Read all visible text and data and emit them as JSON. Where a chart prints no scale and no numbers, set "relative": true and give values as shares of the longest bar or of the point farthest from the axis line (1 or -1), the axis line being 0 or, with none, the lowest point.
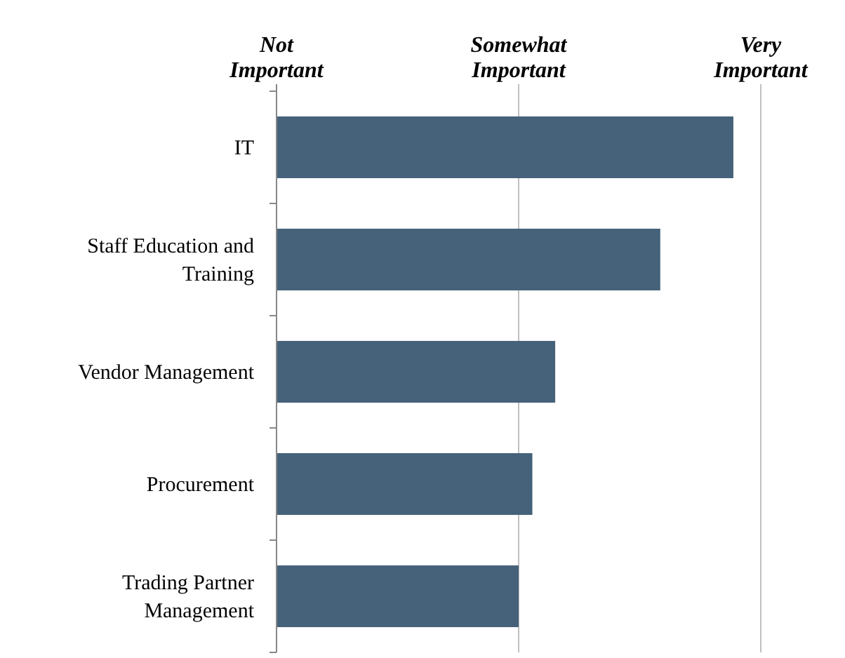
{
  "chart_data": {
    "type": "bar",
    "orientation": "horizontal",
    "relative": true,
    "categories": [
      "IT",
      "Staff Education and Training",
      "Vendor Management",
      "Procurement",
      "Trading Partner Management"
    ],
    "values": [
      1,
      0.84,
      0.61,
      0.56,
      0.53
    ],
    "color": "#46627a",
    "annotations": [
      "Not Important"
    ],
    "ref_lines": [
      {
        "axis": "x",
        "value": 0.53,
        "label": "Somewhat Important",
        "color": "#bfbfbf"
      },
      {
        "axis": "x",
        "value": 1.06,
        "label": "Very Important",
        "color": "#bfbfbf"
      }
    ]
  }
}
